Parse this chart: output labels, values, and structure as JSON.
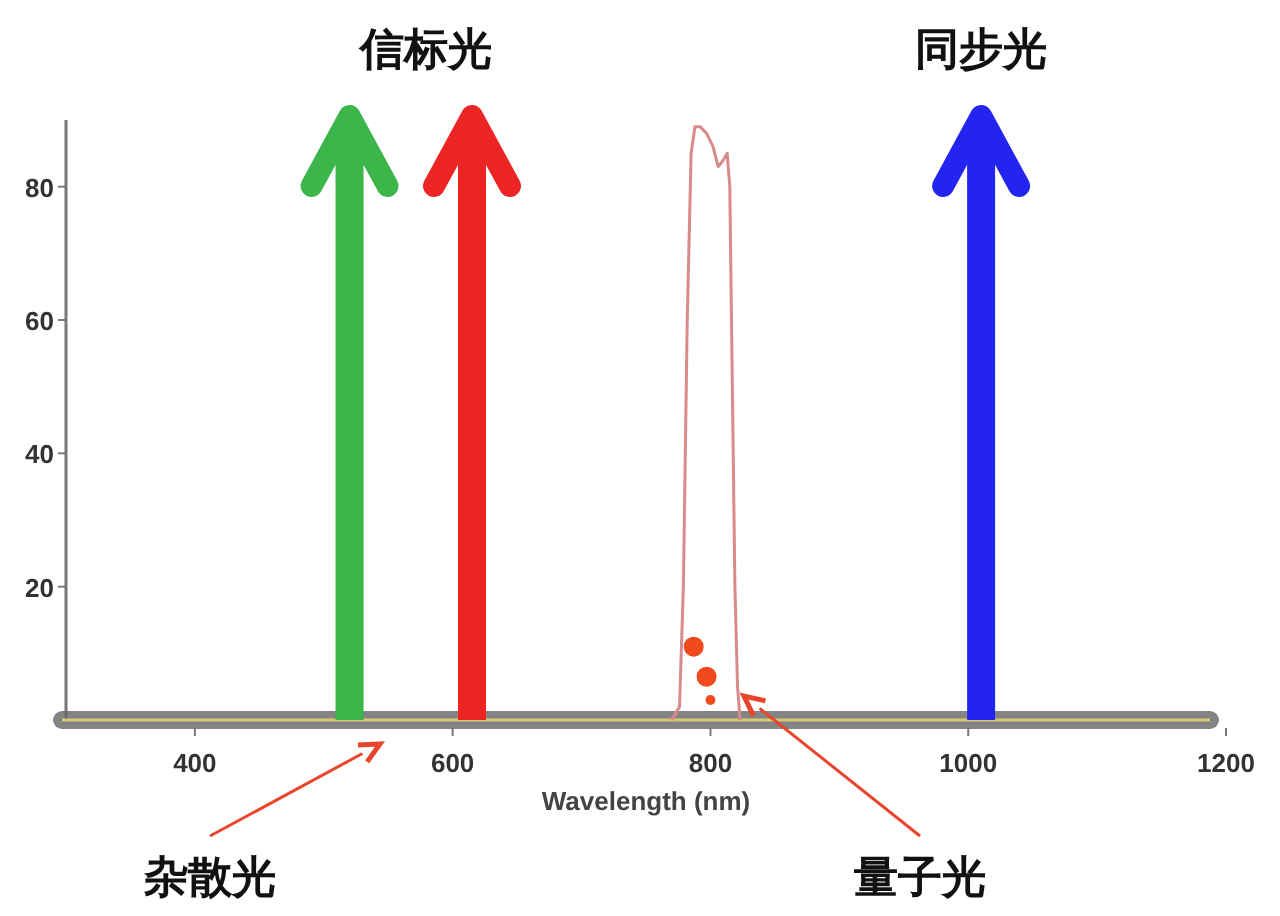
{
  "chart_data": {
    "type": "line",
    "xlabel": "Wavelength (nm)",
    "series": [
      {
        "color": "#d98a8a",
        "x": [
          770,
          776,
          779,
          782,
          785,
          788,
          792,
          797,
          802,
          806,
          810,
          813,
          815,
          817,
          819,
          821,
          823
        ],
        "values": [
          0,
          2,
          20,
          60,
          85,
          89,
          89,
          88,
          86,
          83,
          84,
          85,
          80,
          50,
          20,
          5,
          0
        ]
      }
    ],
    "xlim": [
      300,
      1200
    ],
    "xticks": [
      400,
      600,
      800,
      1000,
      1200
    ],
    "ylim": [
      0,
      90
    ],
    "yticks": [
      20,
      40,
      60,
      80
    ],
    "grid": false,
    "marker": "none",
    "line_style": "solid",
    "ref_lines": [
      {
        "axis": "x",
        "value": 520,
        "color": "#3cb64a",
        "label": "信标光"
      },
      {
        "axis": "x",
        "value": 615,
        "color": "#ec2424"
      },
      {
        "axis": "x",
        "value": 1010,
        "color": "#2424f0",
        "label": "同步光"
      }
    ],
    "annotations": [
      "杂散光",
      "量子光"
    ]
  }
}
